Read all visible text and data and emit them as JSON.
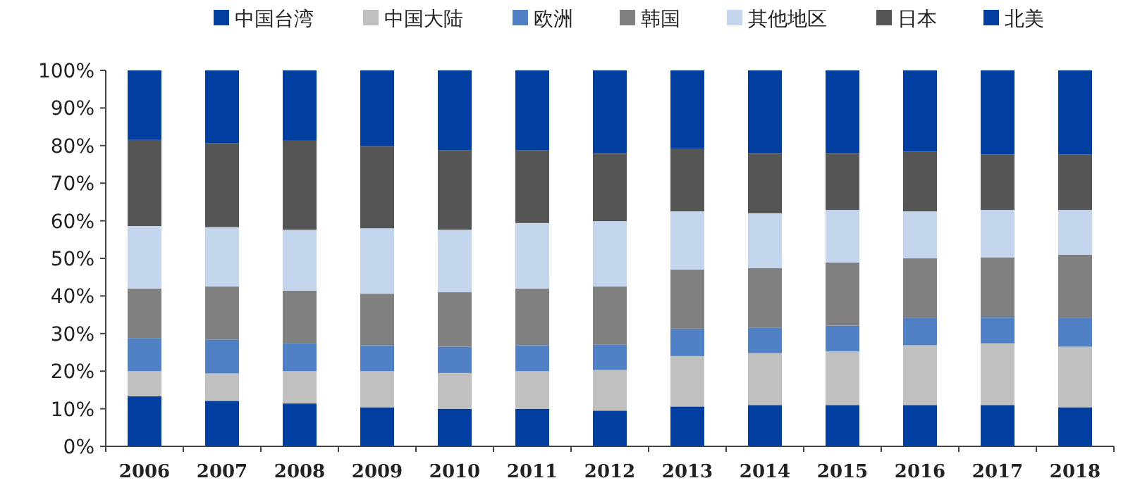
{
  "chart_data": {
    "type": "bar",
    "stacked": true,
    "legend": "top",
    "grid": false,
    "categories": [
      "2006",
      "2007",
      "2008",
      "2009",
      "2010",
      "2011",
      "2012",
      "2013",
      "2014",
      "2015",
      "2016",
      "2017",
      "2018"
    ],
    "ylim": [
      0,
      100
    ],
    "yticks": [
      {
        "value": 0,
        "label": "0%"
      },
      {
        "value": 10,
        "label": "10%"
      },
      {
        "value": 20,
        "label": "20%"
      },
      {
        "value": 30,
        "label": "30%"
      },
      {
        "value": 40,
        "label": "40%"
      },
      {
        "value": 50,
        "label": "50%"
      },
      {
        "value": 60,
        "label": "60%"
      },
      {
        "value": 70,
        "label": "70%"
      },
      {
        "value": 80,
        "label": "80%"
      },
      {
        "value": 90,
        "label": "90%"
      },
      {
        "value": 100,
        "label": "100%"
      }
    ],
    "series": [
      {
        "name": "中国台湾",
        "color": "#003f9f",
        "values": [
          13.3,
          12.1,
          11.4,
          10.4,
          10,
          10,
          9.5,
          10.6,
          11,
          11,
          11,
          11,
          10.4
        ]
      },
      {
        "name": "中国大陆",
        "color": "#c0c0c0",
        "values": [
          6.7,
          7.3,
          8.6,
          9.6,
          9.5,
          10,
          10.8,
          13.4,
          13.8,
          14.3,
          15.9,
          16.4,
          16.1
        ]
      },
      {
        "name": "欧洲",
        "color": "#4f81c4",
        "values": [
          8.8,
          9,
          7.5,
          6.9,
          7,
          6.9,
          6.7,
          7.3,
          6.7,
          6.8,
          7.2,
          7,
          7.6
        ]
      },
      {
        "name": "韩国",
        "color": "#808080",
        "values": [
          13.2,
          14.1,
          13.9,
          13.7,
          14.5,
          15.1,
          15.5,
          15.7,
          15.9,
          16.8,
          15.9,
          15.9,
          16.9
        ]
      },
      {
        "name": "其他地区",
        "color": "#c3d6ee",
        "values": [
          16.6,
          15.8,
          16.2,
          17.4,
          16.6,
          17.4,
          17.4,
          15.5,
          14.6,
          14,
          12.5,
          12.6,
          11.9
        ]
      },
      {
        "name": "日本",
        "color": "#555555",
        "values": [
          22.9,
          22.3,
          23.7,
          21.9,
          21.2,
          19.4,
          18.1,
          16.6,
          16,
          15.1,
          15.9,
          14.7,
          14.7
        ]
      },
      {
        "name": "北美",
        "color": "#003f9f",
        "values": [
          18.5,
          19.4,
          18.7,
          20.1,
          21.2,
          21.2,
          22,
          20.9,
          22,
          22,
          21.6,
          22.4,
          22.4
        ]
      }
    ]
  }
}
